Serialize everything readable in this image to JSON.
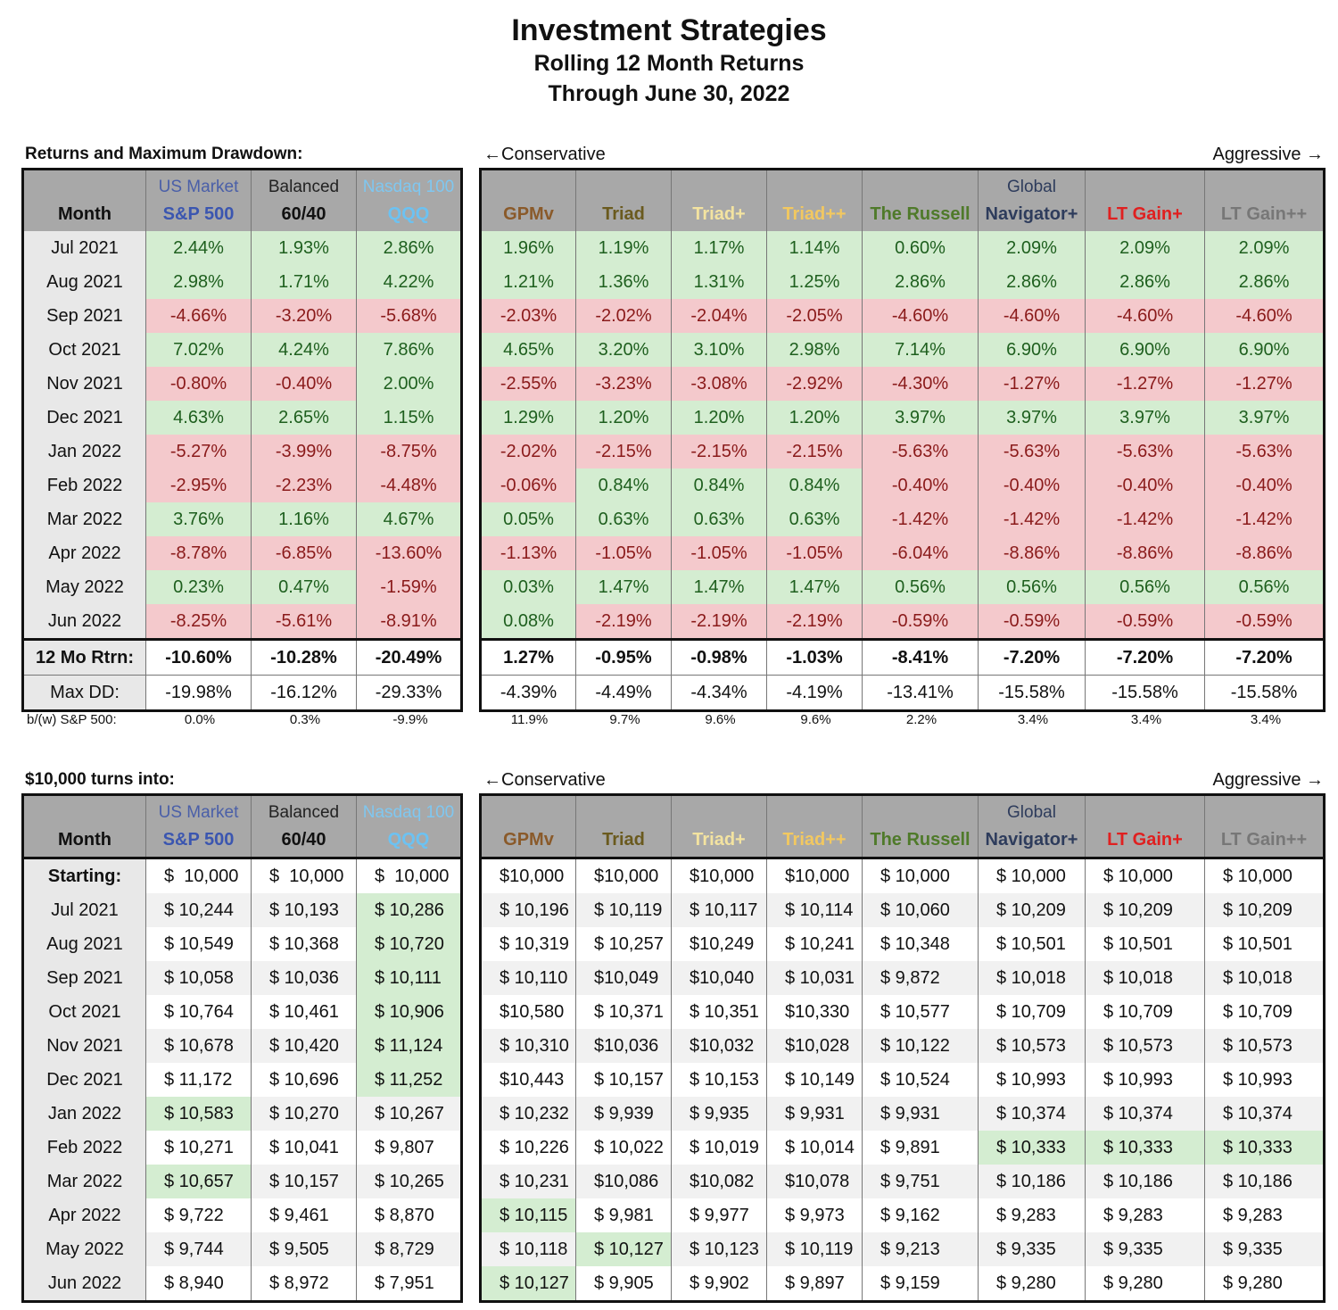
{
  "title": "Investment Strategies",
  "subtitle1": "Rolling 12 Month Returns",
  "subtitle2": "Through June 30, 2022",
  "section1_label": "Returns and Maximum Drawdown:",
  "section2_label": "$10,000 turns into:",
  "conservative_label": "←Conservative",
  "aggressive_label": "Aggressive →",
  "month_header": "Month",
  "starting_label": "Starting:",
  "rtrn_label": "12 Mo Rtrn:",
  "maxdd_label": "Max DD:",
  "bw_label": "b/(w) S&P 500:",
  "colors": {
    "header_gray": "#a8a8a8",
    "pos_bg": "#d4edd1",
    "pos_fg": "#1e5f1e",
    "neg_bg": "#f4c9cc",
    "neg_fg": "#8a1a1a"
  },
  "left_columns": [
    {
      "top": "US Market",
      "top_color": "#4a5fa8",
      "main": "S&P 500",
      "main_color": "#3b56b0"
    },
    {
      "top": "Balanced",
      "top_color": "#222222",
      "main": "60/40",
      "main_color": "#111111"
    },
    {
      "top": "Nasdaq 100",
      "top_color": "#7fc7f0",
      "main": "QQQ",
      "main_color": "#6cc2f2"
    }
  ],
  "right_columns": [
    {
      "top": "",
      "main": "GPMv",
      "main_color": "#8a5a2a"
    },
    {
      "top": "",
      "main": "Triad",
      "main_color": "#6a5a1e"
    },
    {
      "top": "",
      "main": "Triad+",
      "main_color": "#f3e3a0"
    },
    {
      "top": "",
      "main": "Triad++",
      "main_color": "#f2c860"
    },
    {
      "top": "",
      "main": "The Russell",
      "main_color": "#4f7a2a"
    },
    {
      "top": "Global",
      "top_color": "#2e3c5c",
      "main": "Navigator+",
      "main_color": "#2e3c5c"
    },
    {
      "top": "",
      "main": "LT Gain+",
      "main_color": "#e02020"
    },
    {
      "top": "",
      "main": "LT Gain++",
      "main_color": "#777777"
    }
  ],
  "months": [
    "Jul 2021",
    "Aug 2021",
    "Sep 2021",
    "Oct 2021",
    "Nov 2021",
    "Dec 2021",
    "Jan 2022",
    "Feb 2022",
    "Mar 2022",
    "Apr 2022",
    "May 2022",
    "Jun 2022"
  ],
  "returns_left": [
    [
      "2.44%",
      "1.93%",
      "2.86%"
    ],
    [
      "2.98%",
      "1.71%",
      "4.22%"
    ],
    [
      "-4.66%",
      "-3.20%",
      "-5.68%"
    ],
    [
      "7.02%",
      "4.24%",
      "7.86%"
    ],
    [
      "-0.80%",
      "-0.40%",
      "2.00%"
    ],
    [
      "4.63%",
      "2.65%",
      "1.15%"
    ],
    [
      "-5.27%",
      "-3.99%",
      "-8.75%"
    ],
    [
      "-2.95%",
      "-2.23%",
      "-4.48%"
    ],
    [
      "3.76%",
      "1.16%",
      "4.67%"
    ],
    [
      "-8.78%",
      "-6.85%",
      "-13.60%"
    ],
    [
      "0.23%",
      "0.47%",
      "-1.59%"
    ],
    [
      "-8.25%",
      "-5.61%",
      "-8.91%"
    ]
  ],
  "returns_right": [
    [
      "1.96%",
      "1.19%",
      "1.17%",
      "1.14%",
      "0.60%",
      "2.09%",
      "2.09%",
      "2.09%"
    ],
    [
      "1.21%",
      "1.36%",
      "1.31%",
      "1.25%",
      "2.86%",
      "2.86%",
      "2.86%",
      "2.86%"
    ],
    [
      "-2.03%",
      "-2.02%",
      "-2.04%",
      "-2.05%",
      "-4.60%",
      "-4.60%",
      "-4.60%",
      "-4.60%"
    ],
    [
      "4.65%",
      "3.20%",
      "3.10%",
      "2.98%",
      "7.14%",
      "6.90%",
      "6.90%",
      "6.90%"
    ],
    [
      "-2.55%",
      "-3.23%",
      "-3.08%",
      "-2.92%",
      "-4.30%",
      "-1.27%",
      "-1.27%",
      "-1.27%"
    ],
    [
      "1.29%",
      "1.20%",
      "1.20%",
      "1.20%",
      "3.97%",
      "3.97%",
      "3.97%",
      "3.97%"
    ],
    [
      "-2.02%",
      "-2.15%",
      "-2.15%",
      "-2.15%",
      "-5.63%",
      "-5.63%",
      "-5.63%",
      "-5.63%"
    ],
    [
      "-0.06%",
      "0.84%",
      "0.84%",
      "0.84%",
      "-0.40%",
      "-0.40%",
      "-0.40%",
      "-0.40%"
    ],
    [
      "0.05%",
      "0.63%",
      "0.63%",
      "0.63%",
      "-1.42%",
      "-1.42%",
      "-1.42%",
      "-1.42%"
    ],
    [
      "-1.13%",
      "-1.05%",
      "-1.05%",
      "-1.05%",
      "-6.04%",
      "-8.86%",
      "-8.86%",
      "-8.86%"
    ],
    [
      "0.03%",
      "1.47%",
      "1.47%",
      "1.47%",
      "0.56%",
      "0.56%",
      "0.56%",
      "0.56%"
    ],
    [
      "0.08%",
      "-2.19%",
      "-2.19%",
      "-2.19%",
      "-0.59%",
      "-0.59%",
      "-0.59%",
      "-0.59%"
    ]
  ],
  "rtrn_left": [
    "-10.60%",
    "-10.28%",
    "-20.49%"
  ],
  "rtrn_right": [
    "1.27%",
    "-0.95%",
    "-0.98%",
    "-1.03%",
    "-8.41%",
    "-7.20%",
    "-7.20%",
    "-7.20%"
  ],
  "maxdd_left": [
    "-19.98%",
    "-16.12%",
    "-29.33%"
  ],
  "maxdd_right": [
    "-4.39%",
    "-4.49%",
    "-4.34%",
    "-4.19%",
    "-13.41%",
    "-15.58%",
    "-15.58%",
    "-15.58%"
  ],
  "bw_left": [
    "0.0%",
    "0.3%",
    "-9.9%"
  ],
  "bw_right": [
    "11.9%",
    "9.7%",
    "9.6%",
    "9.6%",
    "2.2%",
    "3.4%",
    "3.4%",
    "3.4%"
  ],
  "starting_left": [
    "$  10,000",
    "$  10,000",
    "$  10,000"
  ],
  "starting_right": [
    "$10,000",
    "$10,000",
    "$10,000",
    "$10,000",
    "$ 10,000",
    "$ 10,000",
    "$ 10,000",
    "$ 10,000"
  ],
  "growth_left": [
    [
      "$ 10,244",
      "$ 10,193",
      "$ 10,286"
    ],
    [
      "$ 10,549",
      "$ 10,368",
      "$ 10,720"
    ],
    [
      "$ 10,058",
      "$ 10,036",
      "$ 10,111"
    ],
    [
      "$ 10,764",
      "$ 10,461",
      "$ 10,906"
    ],
    [
      "$ 10,678",
      "$ 10,420",
      "$ 11,124"
    ],
    [
      "$ 11,172",
      "$ 10,696",
      "$ 11,252"
    ],
    [
      "$ 10,583",
      "$ 10,270",
      "$ 10,267"
    ],
    [
      "$ 10,271",
      "$ 10,041",
      "$ 9,807"
    ],
    [
      "$ 10,657",
      "$ 10,157",
      "$ 10,265"
    ],
    [
      "$ 9,722",
      "$ 9,461",
      "$ 8,870"
    ],
    [
      "$ 9,744",
      "$ 9,505",
      "$ 8,729"
    ],
    [
      "$ 8,940",
      "$ 8,972",
      "$ 7,951"
    ]
  ],
  "growth_right": [
    [
      "$ 10,196",
      "$ 10,119",
      "$ 10,117",
      "$ 10,114",
      "$ 10,060",
      "$ 10,209",
      "$ 10,209",
      "$ 10,209"
    ],
    [
      "$ 10,319",
      "$ 10,257",
      "$10,249",
      "$ 10,241",
      "$ 10,348",
      "$ 10,501",
      "$ 10,501",
      "$ 10,501"
    ],
    [
      "$ 10,110",
      "$10,049",
      "$10,040",
      "$ 10,031",
      "$ 9,872",
      "$ 10,018",
      "$ 10,018",
      "$ 10,018"
    ],
    [
      "$10,580",
      "$ 10,371",
      "$ 10,351",
      "$10,330",
      "$ 10,577",
      "$ 10,709",
      "$ 10,709",
      "$ 10,709"
    ],
    [
      "$ 10,310",
      "$10,036",
      "$10,032",
      "$10,028",
      "$ 10,122",
      "$ 10,573",
      "$ 10,573",
      "$ 10,573"
    ],
    [
      "$10,443",
      "$ 10,157",
      "$ 10,153",
      "$ 10,149",
      "$ 10,524",
      "$ 10,993",
      "$ 10,993",
      "$ 10,993"
    ],
    [
      "$ 10,232",
      "$ 9,939",
      "$ 9,935",
      "$ 9,931",
      "$ 9,931",
      "$ 10,374",
      "$ 10,374",
      "$ 10,374"
    ],
    [
      "$ 10,226",
      "$ 10,022",
      "$ 10,019",
      "$ 10,014",
      "$ 9,891",
      "$ 10,333",
      "$ 10,333",
      "$ 10,333"
    ],
    [
      "$ 10,231",
      "$10,086",
      "$10,082",
      "$10,078",
      "$ 9,751",
      "$ 10,186",
      "$ 10,186",
      "$ 10,186"
    ],
    [
      "$ 10,115",
      "$ 9,981",
      "$ 9,977",
      "$ 9,973",
      "$ 9,162",
      "$ 9,283",
      "$ 9,283",
      "$ 9,283"
    ],
    [
      "$ 10,118",
      "$ 10,127",
      "$ 10,123",
      "$ 10,119",
      "$ 9,213",
      "$ 9,335",
      "$ 9,335",
      "$ 9,335"
    ],
    [
      "$ 10,127",
      "$ 9,905",
      "$ 9,902",
      "$ 9,897",
      "$ 9,159",
      "$ 9,280",
      "$ 9,280",
      "$ 9,280"
    ]
  ],
  "growth_highlight_left": [
    [
      0,
      0,
      1
    ],
    [
      0,
      0,
      1
    ],
    [
      0,
      0,
      1
    ],
    [
      0,
      0,
      1
    ],
    [
      0,
      0,
      1
    ],
    [
      0,
      0,
      1
    ],
    [
      1,
      0,
      0
    ],
    [
      0,
      0,
      0
    ],
    [
      1,
      0,
      0
    ],
    [
      0,
      0,
      0
    ],
    [
      0,
      0,
      0
    ],
    [
      0,
      0,
      0
    ]
  ],
  "growth_highlight_right": [
    [
      0,
      0,
      0,
      0,
      0,
      0,
      0,
      0
    ],
    [
      0,
      0,
      0,
      0,
      0,
      0,
      0,
      0
    ],
    [
      0,
      0,
      0,
      0,
      0,
      0,
      0,
      0
    ],
    [
      0,
      0,
      0,
      0,
      0,
      0,
      0,
      0
    ],
    [
      0,
      0,
      0,
      0,
      0,
      0,
      0,
      0
    ],
    [
      0,
      0,
      0,
      0,
      0,
      0,
      0,
      0
    ],
    [
      0,
      0,
      0,
      0,
      0,
      0,
      0,
      0
    ],
    [
      0,
      0,
      0,
      0,
      0,
      1,
      1,
      1
    ],
    [
      0,
      0,
      0,
      0,
      0,
      0,
      0,
      0
    ],
    [
      1,
      0,
      0,
      0,
      0,
      0,
      0,
      0
    ],
    [
      0,
      1,
      0,
      0,
      0,
      0,
      0,
      0
    ],
    [
      1,
      0,
      0,
      0,
      0,
      0,
      0,
      0
    ]
  ]
}
